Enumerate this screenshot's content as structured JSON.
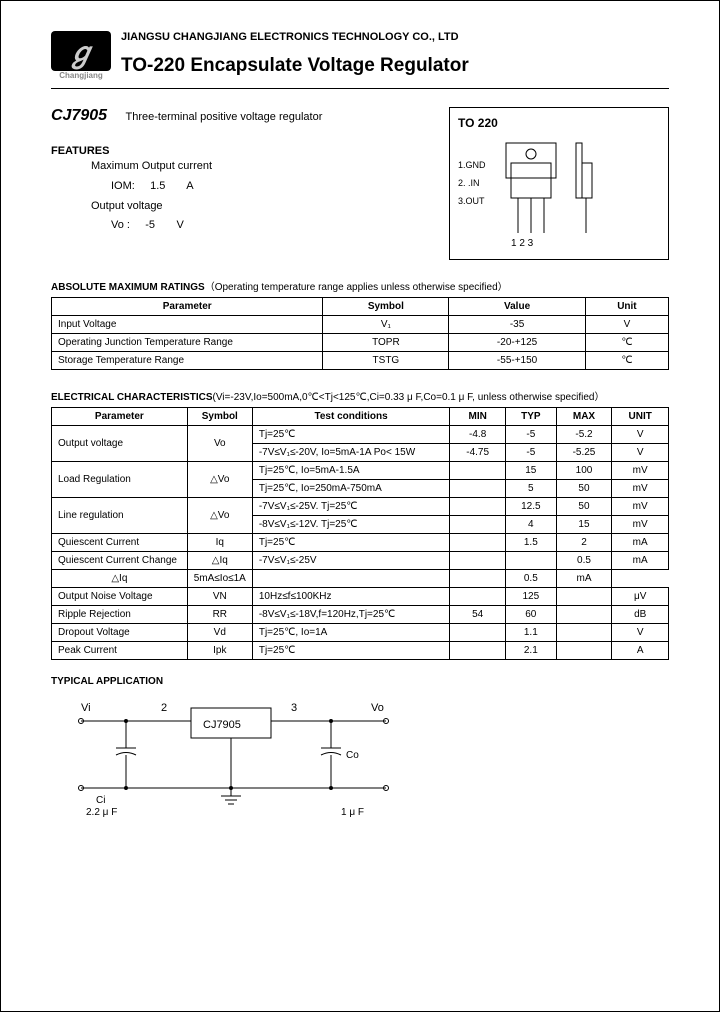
{
  "logo": {
    "glyph": "ℊ",
    "caption": "Changjiang"
  },
  "company": "JIANGSU CHANGJIANG ELECTRONICS TECHNOLOGY CO., LTD",
  "title": "TO-220 Encapsulate Voltage Regulator",
  "part": {
    "number": "CJ7905",
    "desc": "Three-terminal positive voltage regulator"
  },
  "features": {
    "heading": "FEATURES",
    "max_output_label": "Maximum Output current",
    "iom_sym": "IOM:",
    "iom_val": "1.5",
    "iom_unit": "A",
    "vo_label": "Output voltage",
    "vo_sym": "Vo :",
    "vo_val": "-5",
    "vo_unit": "V"
  },
  "package": {
    "label": "TO  220",
    "pins": [
      "1.GND",
      "2. .IN",
      "3.OUT"
    ],
    "pin_nums": "1 2 3"
  },
  "amr": {
    "heading": "ABSOLUTE MAXIMUM RATINGS",
    "sub": "（Operating temperature range applies unless otherwise specified）",
    "columns": [
      "Parameter",
      "Symbol",
      "Value",
      "Unit"
    ],
    "rows": [
      [
        "Input Voltage",
        "V₁",
        "-35",
        "V"
      ],
      [
        "Operating Junction Temperature Range",
        "TOPR",
        "-20-+125",
        "℃"
      ],
      [
        "Storage Temperature Range",
        "TSTG",
        "-55-+150",
        "℃"
      ]
    ]
  },
  "ec": {
    "heading": "ELECTRICAL CHARACTERISTICS",
    "sub": "(Vi=-23V,Io=500mA,0℃<Tj<125℃,Ci=0.33 μ F,Co=0.1 μ F, unless otherwise specified）",
    "columns": [
      "Parameter",
      "Symbol",
      "Test conditions",
      "MIN",
      "TYP",
      "MAX",
      "UNIT"
    ],
    "rows": [
      {
        "p": "Output voltage",
        "s": "Vo",
        "tc": "Tj=25℃",
        "min": "-4.8",
        "typ": "-5",
        "max": "-5.2",
        "u": "V",
        "rowspan": 2
      },
      {
        "tc": "-7V≤V₁≤-20V, Io=5mA-1A\nPo< 15W",
        "min": "-4.75",
        "typ": "-5",
        "max": "-5.25",
        "u": "V"
      },
      {
        "p": "Load Regulation",
        "s": "△Vo",
        "tc": "Tj=25℃, Io=5mA-1.5A",
        "min": "",
        "typ": "15",
        "max": "100",
        "u": "mV",
        "rowspan": 2
      },
      {
        "tc": "Tj=25℃, Io=250mA-750mA",
        "min": "",
        "typ": "5",
        "max": "50",
        "u": "mV"
      },
      {
        "p": "Line regulation",
        "s": "△Vo",
        "tc": "-7V≤V₁≤-25V. Tj=25℃",
        "min": "",
        "typ": "12.5",
        "max": "50",
        "u": "mV",
        "rowspan": 2
      },
      {
        "tc": "-8V≤V₁≤-12V. Tj=25℃",
        "min": "",
        "typ": "4",
        "max": "15",
        "u": "mV"
      },
      {
        "p": "Quiescent Current",
        "s": "Iq",
        "tc": "Tj=25℃",
        "min": "",
        "typ": "1.5",
        "max": "2",
        "u": "mA"
      },
      {
        "p": "Quiescent Current Change",
        "s": "△Iq",
        "tc": "-7V≤V₁≤-25V",
        "min": "",
        "typ": "",
        "max": "0.5",
        "u": "mA",
        "rowspan": 2,
        "srow": true
      },
      {
        "s": "△Iq",
        "tc": "5mA≤Io≤1A",
        "min": "",
        "typ": "",
        "max": "0.5",
        "u": "mA"
      },
      {
        "p": "Output Noise Voltage",
        "s": "VN",
        "tc": "10Hz≤f≤100KHz",
        "min": "",
        "typ": "125",
        "max": "",
        "u": "μV"
      },
      {
        "p": "Ripple Rejection",
        "s": "RR",
        "tc": "-8V≤V₁≤-18V,f=120Hz,Tj=25℃",
        "min": "54",
        "typ": "60",
        "max": "",
        "u": "dB"
      },
      {
        "p": "Dropout Voltage",
        "s": "Vd",
        "tc": "Tj=25℃, Io=1A",
        "min": "",
        "typ": "1.1",
        "max": "",
        "u": "V"
      },
      {
        "p": "Peak Current",
        "s": "Ipk",
        "tc": "Tj=25℃",
        "min": "",
        "typ": "2.1",
        "max": "",
        "u": "A"
      }
    ]
  },
  "app": {
    "heading": "TYPICAL APPLICATION",
    "vi": "Vi",
    "vo": "Vo",
    "n2": "2",
    "n3": "3",
    "ic_text": "CJ7905",
    "ci": "Ci",
    "ci_val": "2.2 μ F",
    "co": "Co",
    "co_val": "1 μ F"
  }
}
